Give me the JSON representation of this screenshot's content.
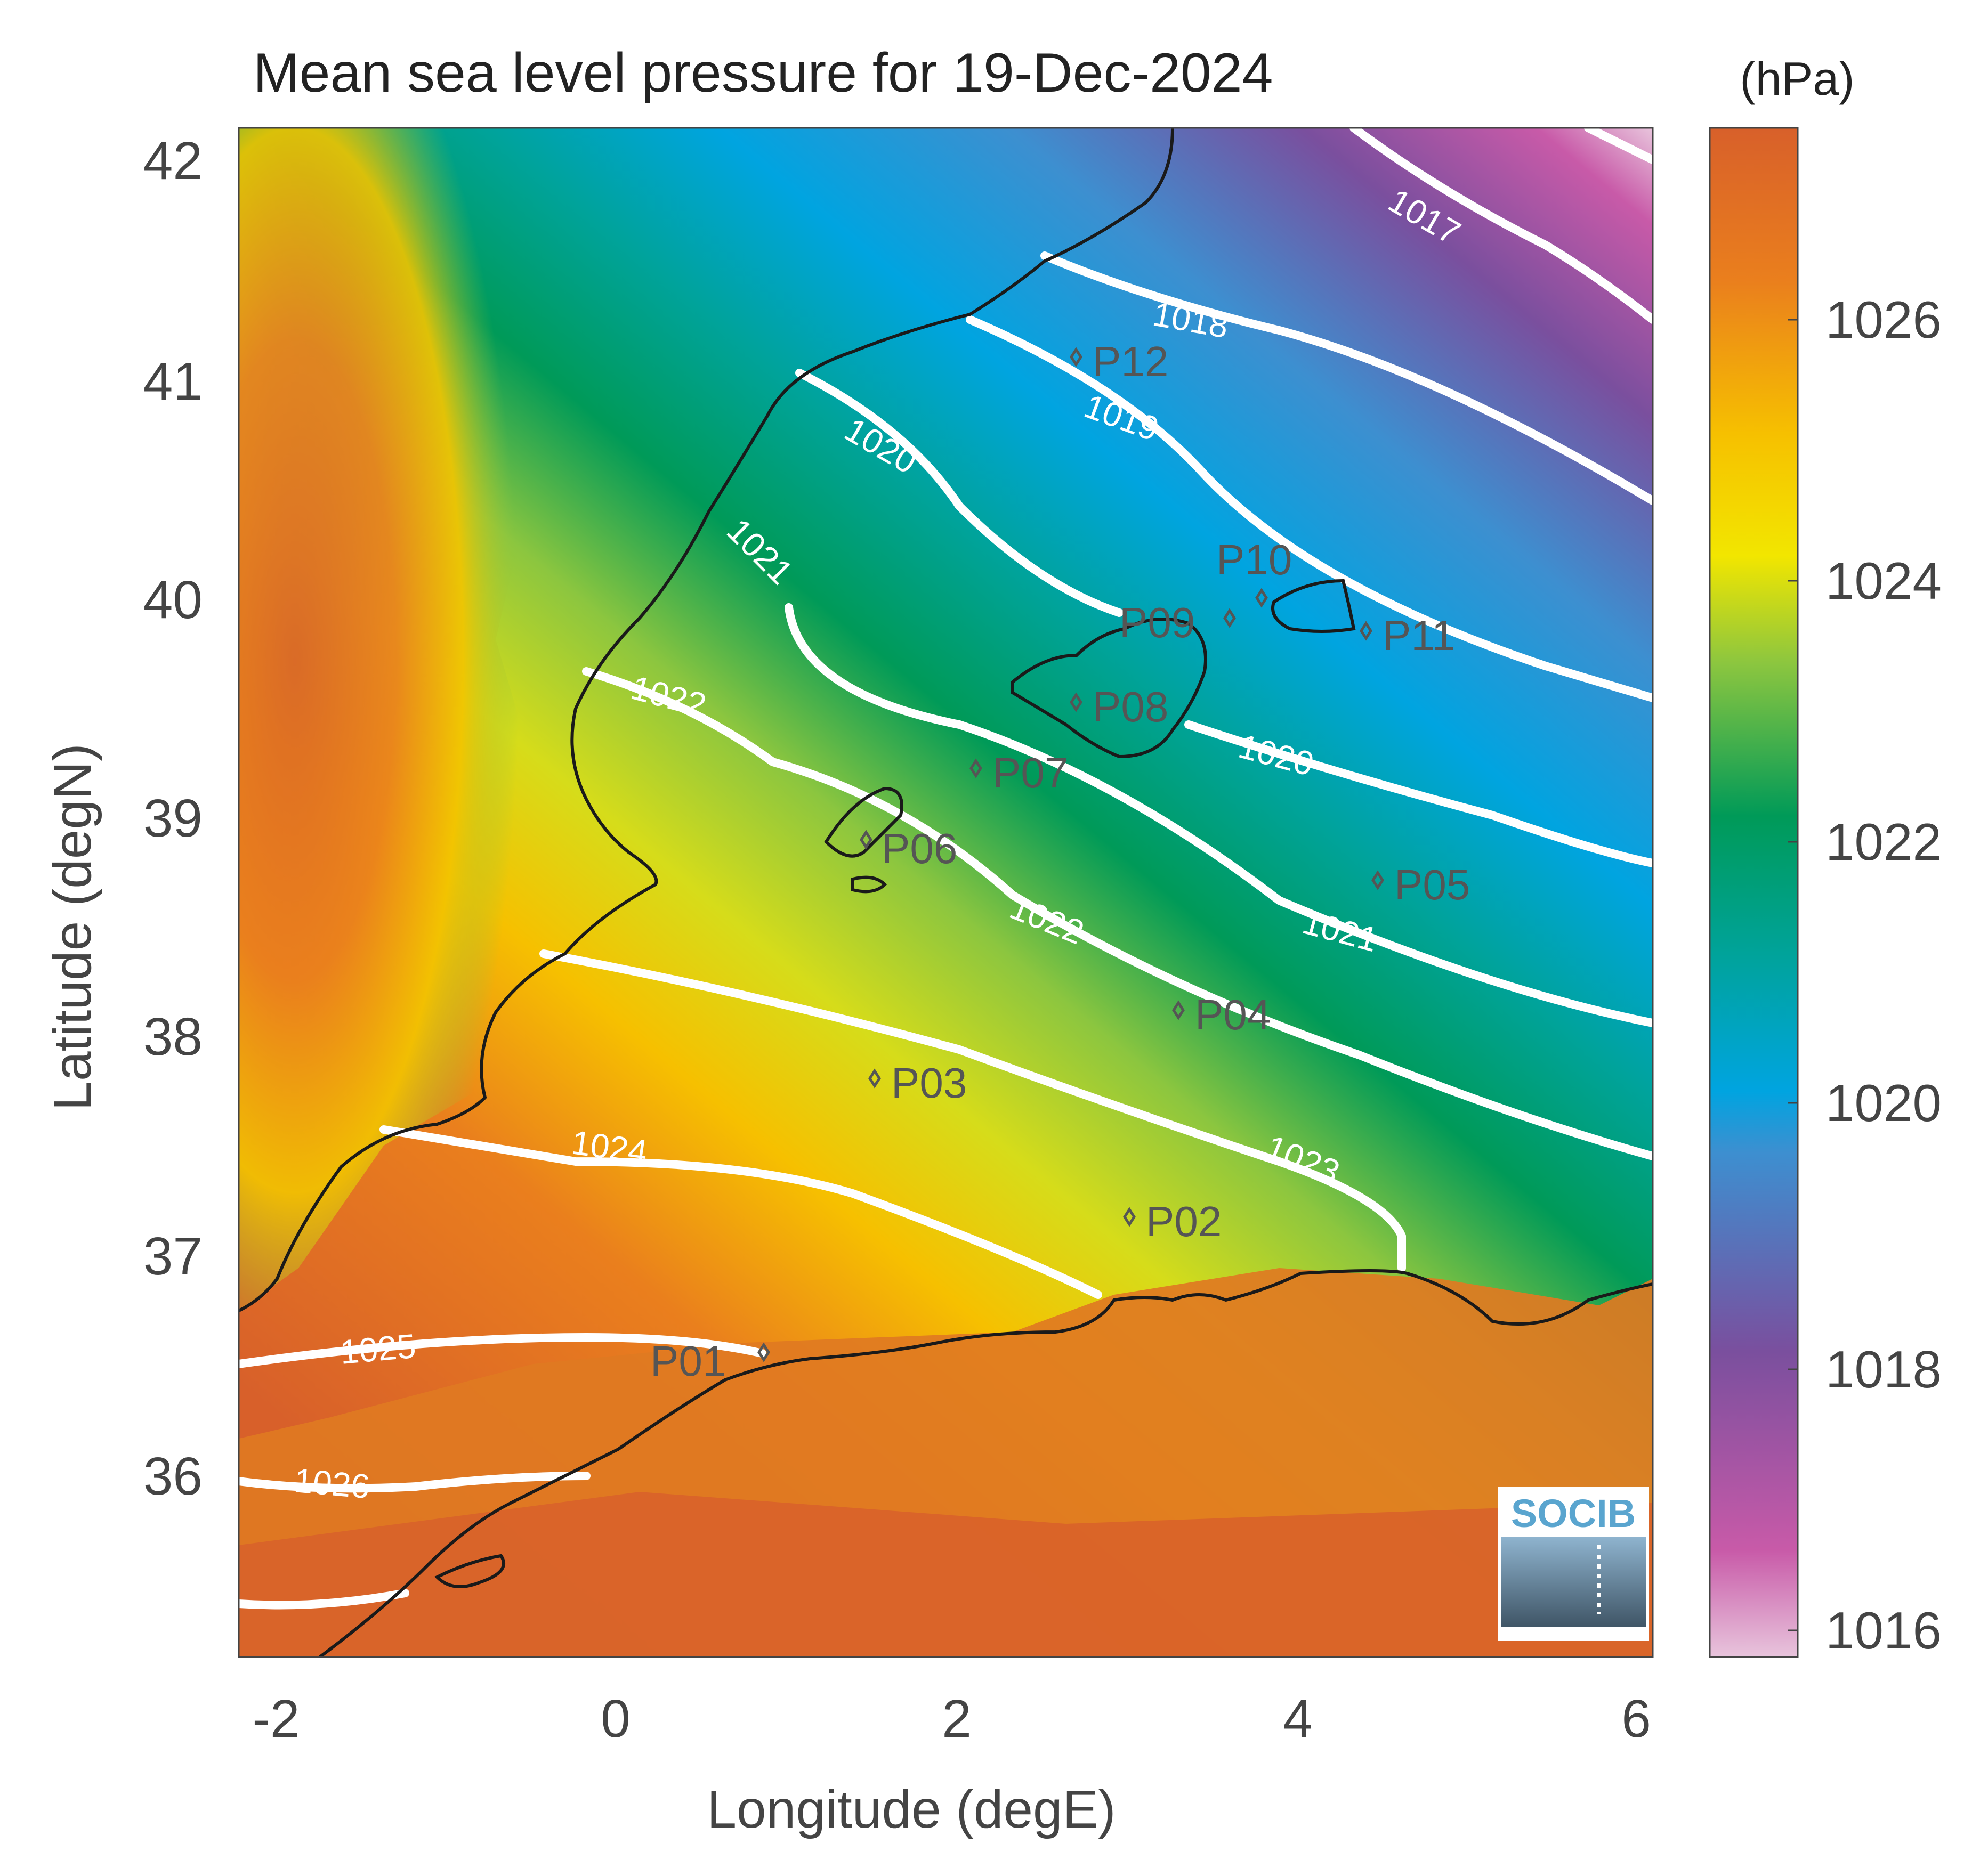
{
  "title": "Mean sea level pressure for 19-Dec-2024",
  "unit": "(hPa)",
  "xlabel": "Longitude (degE)",
  "ylabel": "Latitude (degN)",
  "logo_text": "SOCIB",
  "x_ticks": [
    "-2",
    "0",
    "2",
    "4",
    "6"
  ],
  "y_ticks": [
    "42",
    "41",
    "40",
    "39",
    "38",
    "37",
    "36"
  ],
  "colorbar": {
    "range": [
      1015.8,
      1027.2
    ],
    "ticks": [
      "1026",
      "1024",
      "1022",
      "1020",
      "1018",
      "1016"
    ],
    "colors": [
      "#e8c4dc",
      "#c85aa8",
      "#7a4f9e",
      "#3d8fd0",
      "#00a4e0",
      "#00a39a",
      "#009a58",
      "#8cc63f",
      "#f2e600",
      "#f6c000",
      "#ea7f1d",
      "#d8602a"
    ]
  },
  "contour_labels": [
    "1017",
    "1018",
    "1019",
    "1020",
    "1021",
    "1022",
    "1022",
    "1020",
    "1021",
    "1022",
    "1023",
    "1024",
    "1025",
    "1026"
  ],
  "stations": [
    "P01",
    "P02",
    "P03",
    "P04",
    "P05",
    "P06",
    "P07",
    "P08",
    "P09",
    "P10",
    "P11",
    "P12"
  ]
}
